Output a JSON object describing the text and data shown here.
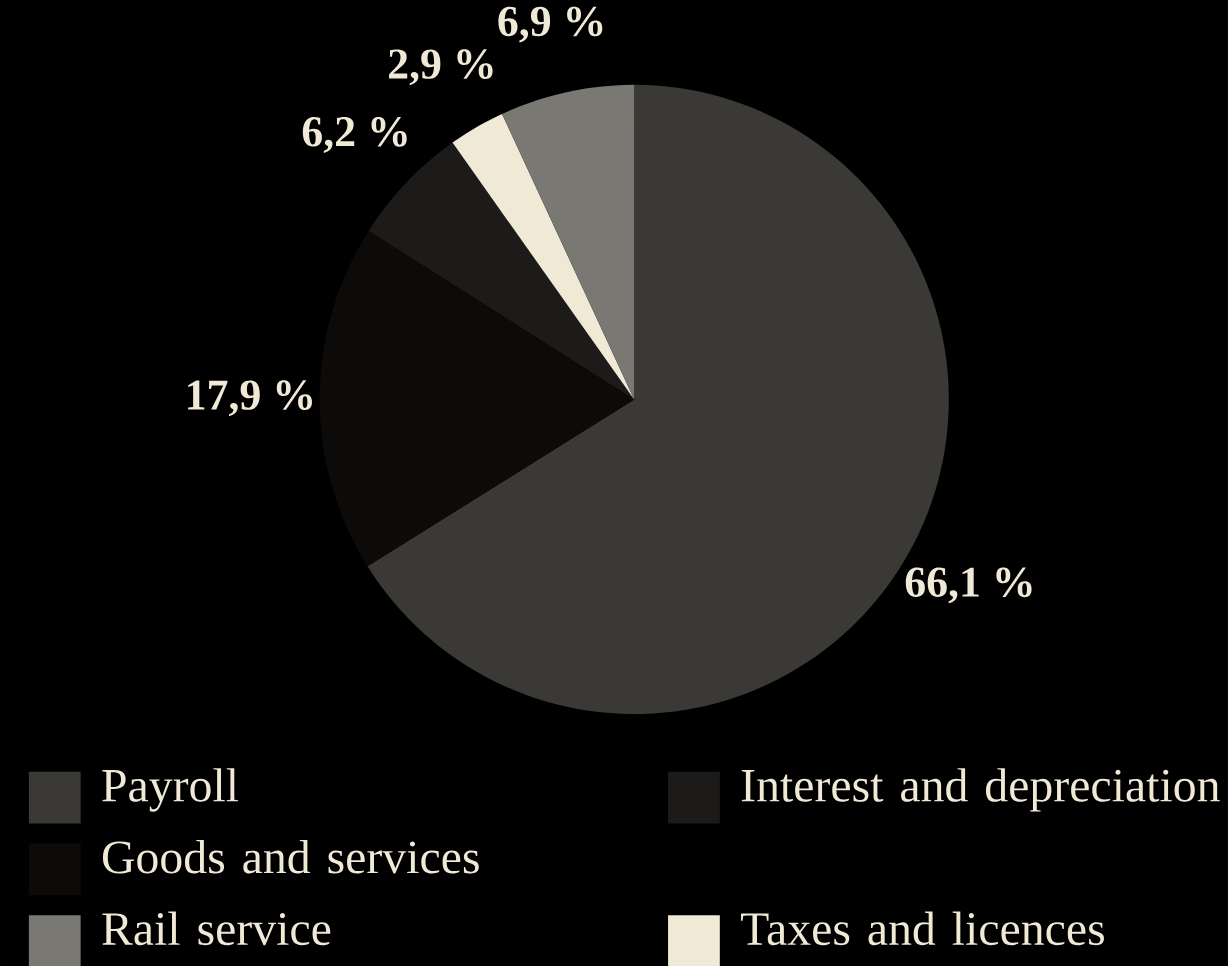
{
  "chart_data": {
    "type": "pie",
    "categories": [
      "Payroll",
      "Goods and services",
      "Interest and depreciation",
      "Taxes and licences",
      "Rail service"
    ],
    "values": [
      66.1,
      17.9,
      6.2,
      2.9,
      6.9
    ],
    "colors": [
      "#3b3936",
      "#0c0b0a",
      "#1c1b19",
      "#efe9d6",
      "#7a7873"
    ],
    "value_labels": [
      "66,1 %",
      "17,9 %",
      "6,2 %",
      "2,9 %",
      "6,9 %"
    ],
    "legend": "bottom"
  }
}
